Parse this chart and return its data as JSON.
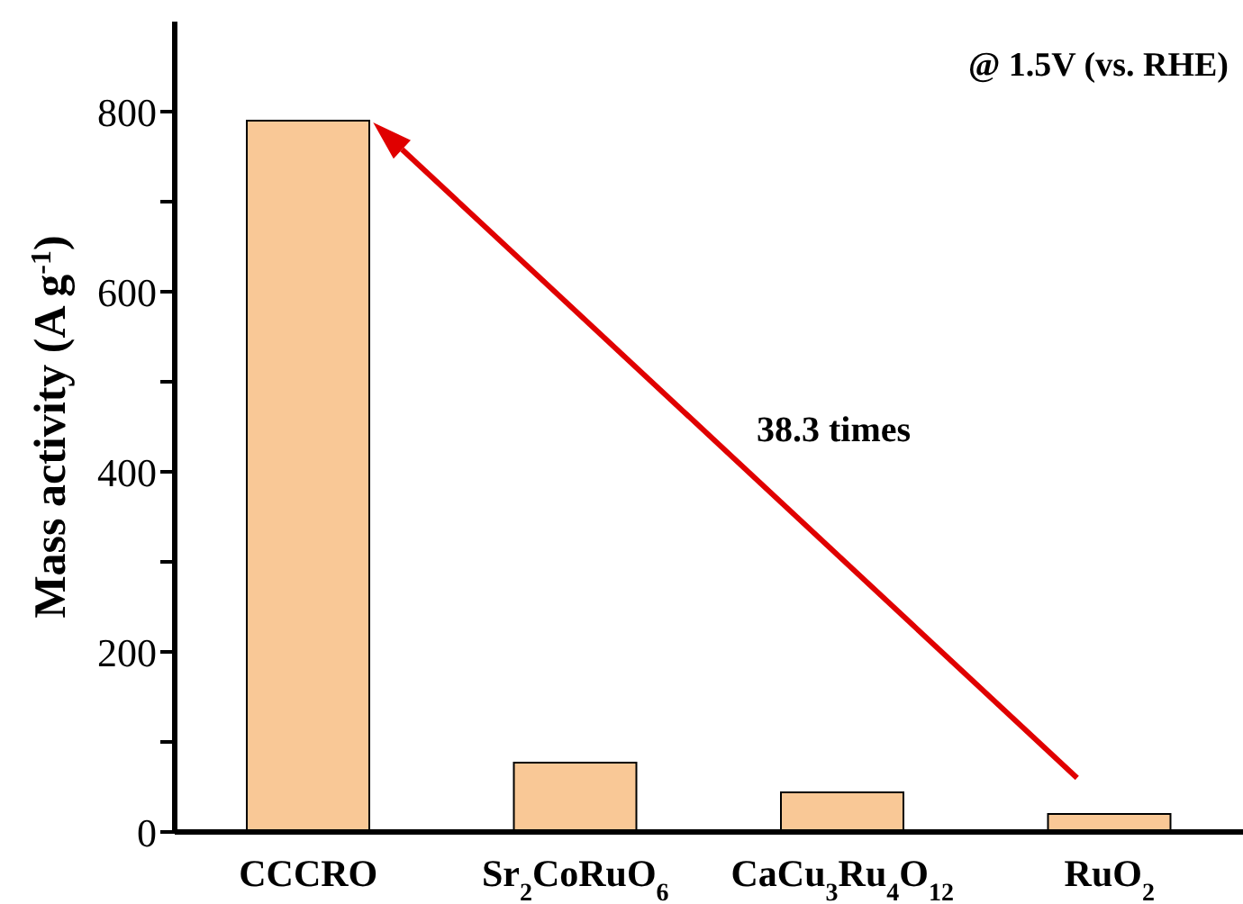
{
  "chart_data": {
    "type": "bar",
    "ylabel": "Mass activity (A g$^{-1}$)",
    "categories": [
      "CCCRO",
      "Sr$_{2}$CoRuO$_{6}$",
      "CaCu$_{3}$Ru$_{4}$O$_{12}$",
      "RuO$_{2}$"
    ],
    "values": [
      790,
      77,
      44,
      20
    ],
    "color": "#f9c896",
    "ylim": [
      0,
      900
    ],
    "yticks": [
      0,
      {
        "value": 100,
        "label": null
      },
      200,
      {
        "value": 300,
        "label": null
      },
      400,
      {
        "value": 500,
        "label": null
      },
      600,
      {
        "value": 700,
        "label": null
      },
      800
    ],
    "annotations": [
      "@ 1.5V (vs. RHE)",
      "38.3 times"
    ]
  }
}
